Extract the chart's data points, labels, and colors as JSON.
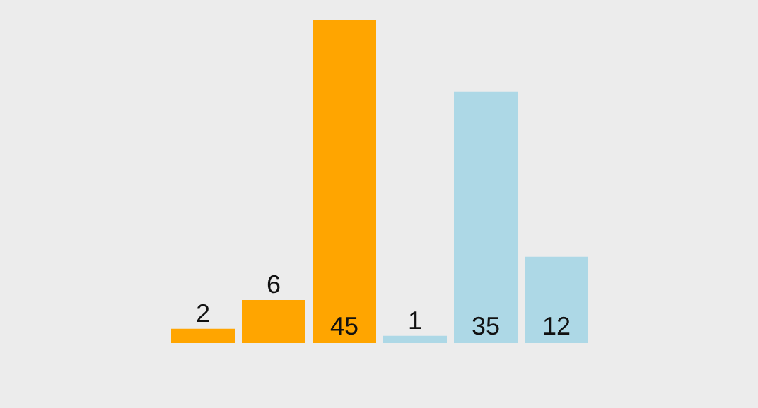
{
  "chart_data": {
    "type": "bar",
    "categories": [
      null,
      null,
      null,
      null,
      null,
      null
    ],
    "values": [
      2,
      6,
      45,
      1,
      35,
      12
    ],
    "colors": [
      "#ffa500",
      "#ffa500",
      "#ffa500",
      "#add8e6",
      "#add8e6",
      "#add8e6"
    ],
    "data_labels": true
  }
}
